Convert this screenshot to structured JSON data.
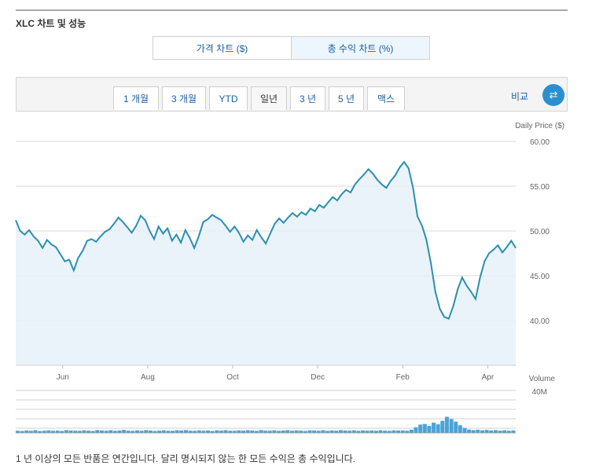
{
  "header": {
    "title": "XLC 차트 및 성능"
  },
  "toggles": [
    {
      "label": "가격 차트 ($)"
    },
    {
      "label": "총 수익 차트 (%)"
    }
  ],
  "ranges": [
    {
      "label": "1 개월"
    },
    {
      "label": "3 개월"
    },
    {
      "label": "YTD"
    },
    {
      "label": "일년",
      "active": true
    },
    {
      "label": "3 년"
    },
    {
      "label": "5 년"
    },
    {
      "label": "맥스"
    }
  ],
  "compare": {
    "label": "비교",
    "icon": "swap-arrows-icon"
  },
  "footnote": "1 년 이상의 모든 반품은 연간입니다. 달리 명시되지 않는 한 모든 수익은 총 수익입니다.",
  "colors": {
    "line": "#2a8fb0",
    "fill": "#e6f1f8",
    "volume": "#4aa3d8",
    "accent": "#2a8fd0"
  },
  "chart_data": {
    "type": "line",
    "ylabel": "Daily Price ($)",
    "ylim": [
      35,
      60
    ],
    "yticks": [
      "60.00",
      "55.00",
      "50.00",
      "45.00",
      "40.00"
    ],
    "ytick_values": [
      60,
      55,
      50,
      45,
      40
    ],
    "xticks": [
      "Jun",
      "Aug",
      "Oct",
      "Dec",
      "Feb",
      "Apr"
    ],
    "xtick_positions": [
      0.094,
      0.264,
      0.434,
      0.604,
      0.774,
      0.944
    ],
    "grid": true,
    "series": [
      {
        "values": [
          51.2,
          50.0,
          49.6,
          50.1,
          49.4,
          48.9,
          48.1,
          49.0,
          48.5,
          48.2,
          47.4,
          46.6,
          46.8,
          45.6,
          47.0,
          47.8,
          48.9,
          49.1,
          48.8,
          49.4,
          49.9,
          50.2,
          50.8,
          51.5,
          51.0,
          50.4,
          49.8,
          50.6,
          51.7,
          51.2,
          50.0,
          49.1,
          50.5,
          49.7,
          50.3,
          48.9,
          49.6,
          48.7,
          50.1,
          49.2,
          48.1,
          49.4,
          51.0,
          51.3,
          51.8,
          51.5,
          51.2,
          50.6,
          49.9,
          50.5,
          49.8,
          48.8,
          49.5,
          49.0,
          50.1,
          49.3,
          48.6,
          49.7,
          50.8,
          51.4,
          50.9,
          51.5,
          52.0,
          51.6,
          52.1,
          51.8,
          52.5,
          52.2,
          52.9,
          52.6,
          53.2,
          53.8,
          53.4,
          54.1,
          54.6,
          54.3,
          55.2,
          55.8,
          56.3,
          56.9,
          56.4,
          55.7,
          55.2,
          54.8,
          55.6,
          56.2,
          57.1,
          57.7,
          57.0,
          54.8,
          51.6,
          50.6,
          49.0,
          46.4,
          43.2,
          41.3,
          40.4,
          40.2,
          41.6,
          43.5,
          44.8,
          43.9,
          43.2,
          42.4,
          44.8,
          46.6,
          47.5,
          47.9,
          48.4,
          47.6,
          48.2,
          48.9,
          48.1
        ],
        "marker_on_last": false
      }
    ],
    "volume": {
      "label": "Volume",
      "ytick": "40M",
      "max": 40,
      "values": [
        2,
        1.8,
        2.2,
        1.9,
        2.5,
        1.7,
        2,
        2.3,
        1.9,
        2.1,
        1.8,
        2.6,
        2.2,
        2,
        1.9,
        2.4,
        2.1,
        1.8,
        2.7,
        2.3,
        2,
        2.5,
        1.9,
        2.2,
        2.8,
        2.1,
        1.9,
        2.3,
        2,
        2.6,
        2.2,
        1.8,
        2.1,
        2.4,
        2,
        1.9,
        2.5,
        2.2,
        2.7,
        2.1,
        1.9,
        2.3,
        2,
        2.2,
        1.8,
        2.4,
        2.1,
        2.6,
        2,
        1.9,
        2.3,
        2.1,
        2.5,
        2.2,
        1.9,
        2.7,
        2.1,
        2,
        2.4,
        1.9,
        2.2,
        2.6,
        2,
        2.3,
        2.1,
        1.8,
        2.4,
        2.2,
        2,
        2.5,
        1.9,
        2.3,
        2.1,
        2.6,
        2.2,
        2,
        2.4,
        1.9,
        2.3,
        2.1,
        2.2,
        2,
        2.5,
        2.1,
        1.9,
        2.4,
        2.2,
        2.3,
        2,
        3,
        5.2,
        7.8,
        8.4,
        6.5,
        9.6,
        8.1,
        11.4,
        15.2,
        13,
        10.6,
        7.2,
        4.6,
        3.1,
        2.6,
        3,
        2.4,
        2.8,
        2.2,
        2.6,
        2.1,
        2.4,
        2,
        2.2
      ]
    }
  }
}
